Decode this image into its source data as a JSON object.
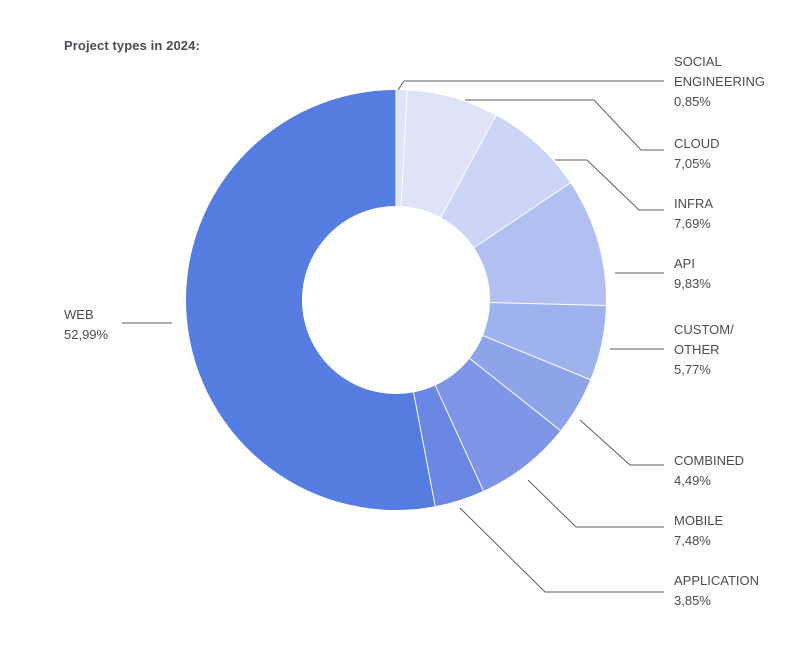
{
  "title": "Project types in 2024:",
  "chart_data": {
    "type": "pie",
    "donut": true,
    "title": "Project types in 2024:",
    "slices": [
      {
        "name_lines": [
          "SOCIAL",
          "ENGINEERING"
        ],
        "value": 0.85,
        "value_label": "0,85%",
        "color": "#dde3f8"
      },
      {
        "name_lines": [
          "CLOUD"
        ],
        "value": 7.05,
        "value_label": "7,05%",
        "color": "#dee3f8"
      },
      {
        "name_lines": [
          "INFRA"
        ],
        "value": 7.69,
        "value_label": "7,69%",
        "color": "#ccd5f5"
      },
      {
        "name_lines": [
          "API"
        ],
        "value": 9.83,
        "value_label": "9,83%",
        "color": "#b1c0f0"
      },
      {
        "name_lines": [
          "CUSTOM/",
          "OTHER"
        ],
        "value": 5.77,
        "value_label": "5,77%",
        "color": "#9eb2ee"
      },
      {
        "name_lines": [
          "COMBINED"
        ],
        "value": 4.49,
        "value_label": "4,49%",
        "color": "#8ea4ea"
      },
      {
        "name_lines": [
          "MOBILE"
        ],
        "value": 7.48,
        "value_label": "7,48%",
        "color": "#7f96e8"
      },
      {
        "name_lines": [
          "APPLICATION"
        ],
        "value": 3.85,
        "value_label": "3,85%",
        "color": "#6a87e4"
      },
      {
        "name_lines": [
          "WEB"
        ],
        "value": 52.99,
        "value_label": "52,99%",
        "color": "#557ce0"
      }
    ]
  }
}
